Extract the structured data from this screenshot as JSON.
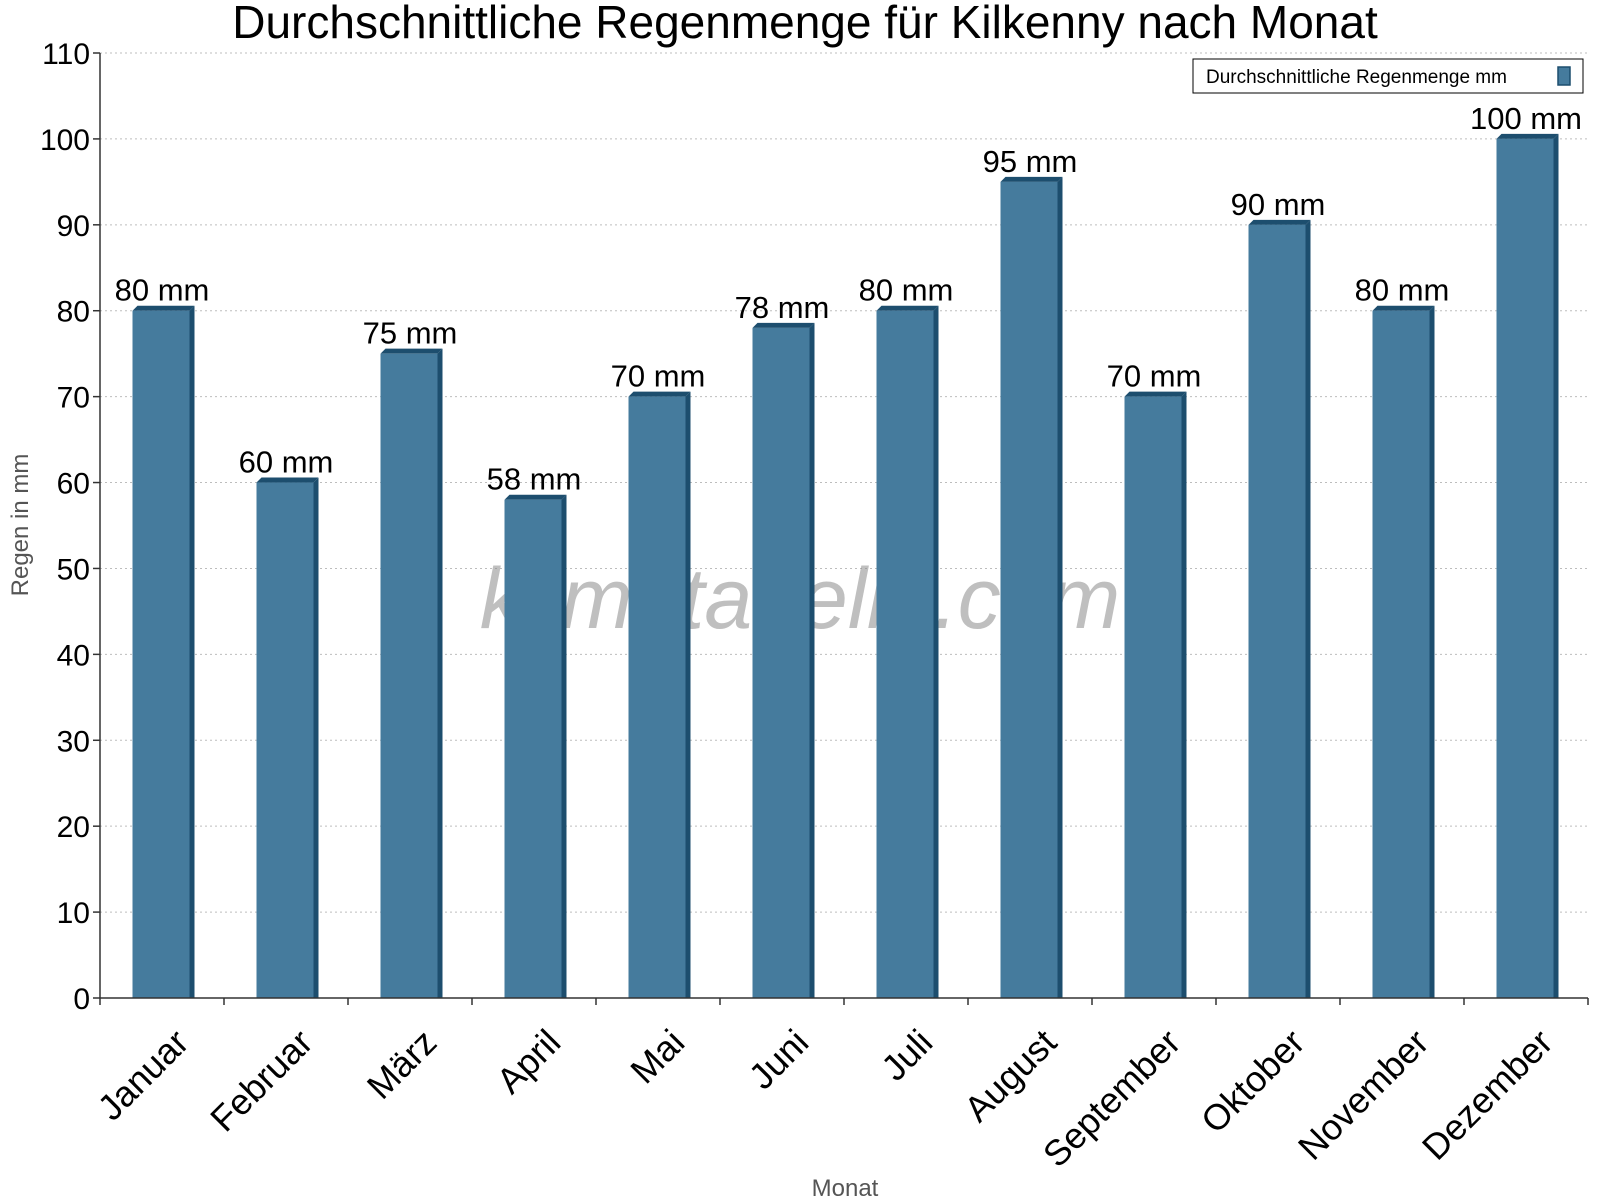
{
  "chart_data": {
    "type": "bar",
    "title": "Durchschnittliche Regenmenge für Kilkenny nach Monat",
    "xlabel": "Monat",
    "ylabel": "Regen in mm",
    "categories": [
      "Januar",
      "Februar",
      "März",
      "April",
      "Mai",
      "Juni",
      "Juli",
      "August",
      "September",
      "Oktober",
      "November",
      "Dezember"
    ],
    "series": [
      {
        "name": "Durchschnittliche Regenmenge mm",
        "values": [
          80,
          60,
          75,
          58,
          70,
          78,
          80,
          95,
          70,
          90,
          80,
          100
        ],
        "labels": [
          "80 mm",
          "60 mm",
          "75 mm",
          "58 mm",
          "70 mm",
          "78 mm",
          "80 mm",
          "95 mm",
          "70 mm",
          "90 mm",
          "80 mm",
          "100 mm"
        ]
      }
    ],
    "ylim": [
      0,
      110
    ],
    "yticks": [
      "0",
      "10",
      "20",
      "30",
      "40",
      "50",
      "60",
      "70",
      "80",
      "90",
      "100",
      "110"
    ],
    "grid": true,
    "legend_position": "top-right",
    "colors": {
      "bar": "#457b9d",
      "bar_edge": "#1d4e6e"
    }
  },
  "watermark": "klimatabelle.com"
}
